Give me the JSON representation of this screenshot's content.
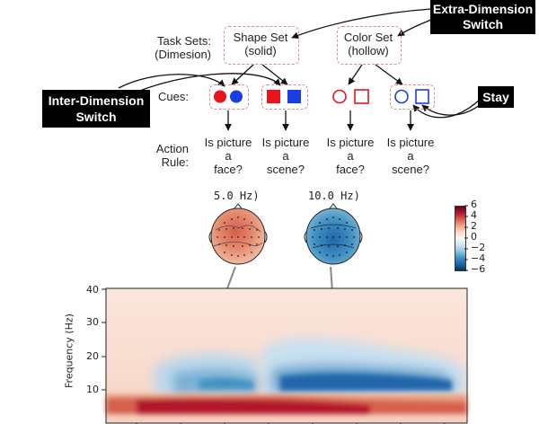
{
  "task_sets": {
    "label_line1": "Task Sets:",
    "label_line2": "(Dimesion)",
    "shape_line1": "Shape Set",
    "shape_line2": "(solid)",
    "color_line1": "Color Set",
    "color_line2": "(hollow)"
  },
  "switches": {
    "extra_line1": "Extra-Dimension",
    "extra_line2": "Switch",
    "inter_line1": "Inter-Dimension",
    "inter_line2": "Switch",
    "stay": "Stay"
  },
  "cues_label": "Cues:",
  "action_rule": {
    "label_line1": "Action",
    "label_line2": "Rule:",
    "rules": [
      [
        "Is picture",
        "a",
        "face?"
      ],
      [
        "Is picture",
        "a",
        "scene?"
      ],
      [
        "Is picture",
        "a",
        "face?"
      ],
      [
        "Is picture",
        "a",
        "scene?"
      ]
    ]
  },
  "topomaps": [
    {
      "title": "5.0 Hz)"
    },
    {
      "title": "10.0 Hz)"
    }
  ],
  "colorbar": {
    "ticks": [
      "6",
      "4",
      "2",
      "0",
      "−2",
      "−4",
      "−6"
    ],
    "colors": [
      "#67001f",
      "#b2182b",
      "#d6604d",
      "#f4a582",
      "#fddbc7",
      "#f7f7f7",
      "#d1e5f0",
      "#92c5de",
      "#4393c3",
      "#2166ac",
      "#053061"
    ]
  },
  "spectrogram": {
    "ylabel": "Frequency (Hz)",
    "yticks": [
      "40",
      "30",
      "20",
      "10"
    ],
    "ylim": [
      0,
      40
    ]
  }
}
